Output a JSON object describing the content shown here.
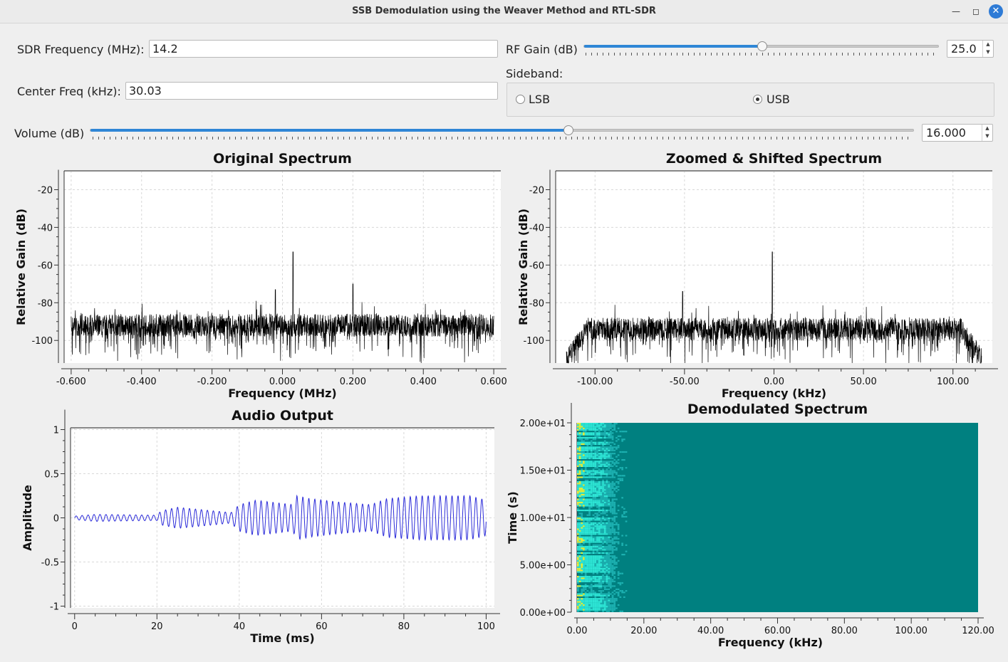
{
  "window": {
    "title": "SSB Demodulation using the Weaver Method and RTL-SDR"
  },
  "controls": {
    "sdr_frequency": {
      "label": "SDR Frequency (MHz):",
      "value": "14.2"
    },
    "center_freq": {
      "label": "Center Freq (kHz):",
      "value": "30.03"
    },
    "rf_gain": {
      "label": "RF Gain (dB)",
      "value": "25.0",
      "level": 0.5
    },
    "sideband": {
      "label": "Sideband:",
      "options": [
        "LSB",
        "USB"
      ],
      "selected": "USB"
    },
    "volume": {
      "label": "Volume (dB)",
      "value": "16.000",
      "level": 0.58
    }
  },
  "colors": {
    "accent": "#2f86d6",
    "trace": "#000000",
    "audio": "#2b2bd9",
    "waterfall_bg": "#008080",
    "waterfall_hot": "#e8f03a",
    "waterfall_mid": "#2ee6d6"
  },
  "chart_data": [
    {
      "type": "line",
      "title": "Original Spectrum",
      "xlabel": "Frequency (MHz)",
      "ylabel": "Relative Gain (dB)",
      "xlim": [
        -0.62,
        0.62
      ],
      "ylim": [
        -112,
        -10
      ],
      "xticks": [
        "-0.600",
        "-0.400",
        "-0.200",
        "0.000",
        "0.200",
        "0.400",
        "0.600"
      ],
      "xtick_values": [
        -0.6,
        -0.4,
        -0.2,
        0.0,
        0.2,
        0.4,
        0.6
      ],
      "yticks": [
        "-20",
        "-40",
        "-60",
        "-80",
        "-100"
      ],
      "ytick_values": [
        -20,
        -40,
        -60,
        -80,
        -100
      ],
      "series": [
        {
          "x_range": [
            -0.6,
            0.6
          ],
          "noise_floor": -92,
          "noise_spread": 12,
          "peaks": [
            {
              "x": 0.03,
              "y": -53
            },
            {
              "x": 0.2,
              "y": -70
            },
            {
              "x": -0.02,
              "y": -73
            }
          ]
        }
      ]
    },
    {
      "type": "line",
      "title": "Zoomed & Shifted Spectrum",
      "xlabel": "Frequency (kHz)",
      "ylabel": "Relative Gain (dB)",
      "xlim": [
        -122,
        122
      ],
      "ylim": [
        -112,
        -10
      ],
      "xticks": [
        "-100.00",
        "-50.00",
        "0.00",
        "50.00",
        "100.00"
      ],
      "xtick_values": [
        -100,
        -50,
        0,
        50,
        100
      ],
      "yticks": [
        "-20",
        "-40",
        "-60",
        "-80",
        "-100"
      ],
      "ytick_values": [
        -20,
        -40,
        -60,
        -80,
        -100
      ],
      "series": [
        {
          "x_range": [
            -116,
            116
          ],
          "noise_floor": -94,
          "noise_spread": 12,
          "peaks": [
            {
              "x": -1,
              "y": -53
            },
            {
              "x": -51,
              "y": -74
            }
          ]
        }
      ]
    },
    {
      "type": "line",
      "title": "Audio Output",
      "xlabel": "Time (ms)",
      "ylabel": "Amplitude",
      "xlim": [
        -1,
        102
      ],
      "ylim": [
        -1.02,
        1.02
      ],
      "xticks": [
        "0",
        "20",
        "40",
        "60",
        "80",
        "100"
      ],
      "xtick_values": [
        0,
        20,
        40,
        60,
        80,
        100
      ],
      "yticks": [
        "1",
        "0.5",
        "0",
        "-0.5",
        "-1"
      ],
      "ytick_values": [
        1,
        0.5,
        0,
        -0.5,
        -1
      ],
      "series": [
        {
          "x_range": [
            0,
            100
          ],
          "envelope": [
            [
              0,
              0.02
            ],
            [
              5,
              0.04
            ],
            [
              20,
              0.03
            ],
            [
              21,
              0.08
            ],
            [
              25,
              0.12
            ],
            [
              38,
              0.06
            ],
            [
              40,
              0.15
            ],
            [
              44,
              0.2
            ],
            [
              53,
              0.15
            ],
            [
              54,
              0.25
            ],
            [
              57,
              0.22
            ],
            [
              64,
              0.18
            ],
            [
              72,
              0.15
            ],
            [
              76,
              0.22
            ],
            [
              84,
              0.25
            ],
            [
              96,
              0.25
            ],
            [
              100,
              0.2
            ]
          ]
        }
      ]
    },
    {
      "type": "heatmap",
      "title": "Demodulated Spectrum",
      "xlabel": "Frequency (kHz)",
      "ylabel": "Time (s)",
      "xlim": [
        0,
        120
      ],
      "ylim": [
        0,
        20
      ],
      "xticks": [
        "0.00",
        "20.00",
        "40.00",
        "60.00",
        "80.00",
        "100.00",
        "120.00"
      ],
      "xtick_values": [
        0,
        20,
        40,
        60,
        80,
        100,
        120
      ],
      "yticks": [
        "0.00e+00",
        "5.00e+00",
        "1.00e+01",
        "1.50e+01",
        "2.00e+01"
      ],
      "ytick_values": [
        0,
        5,
        10,
        15,
        20
      ],
      "signal_band_khz": [
        0,
        15
      ]
    }
  ]
}
